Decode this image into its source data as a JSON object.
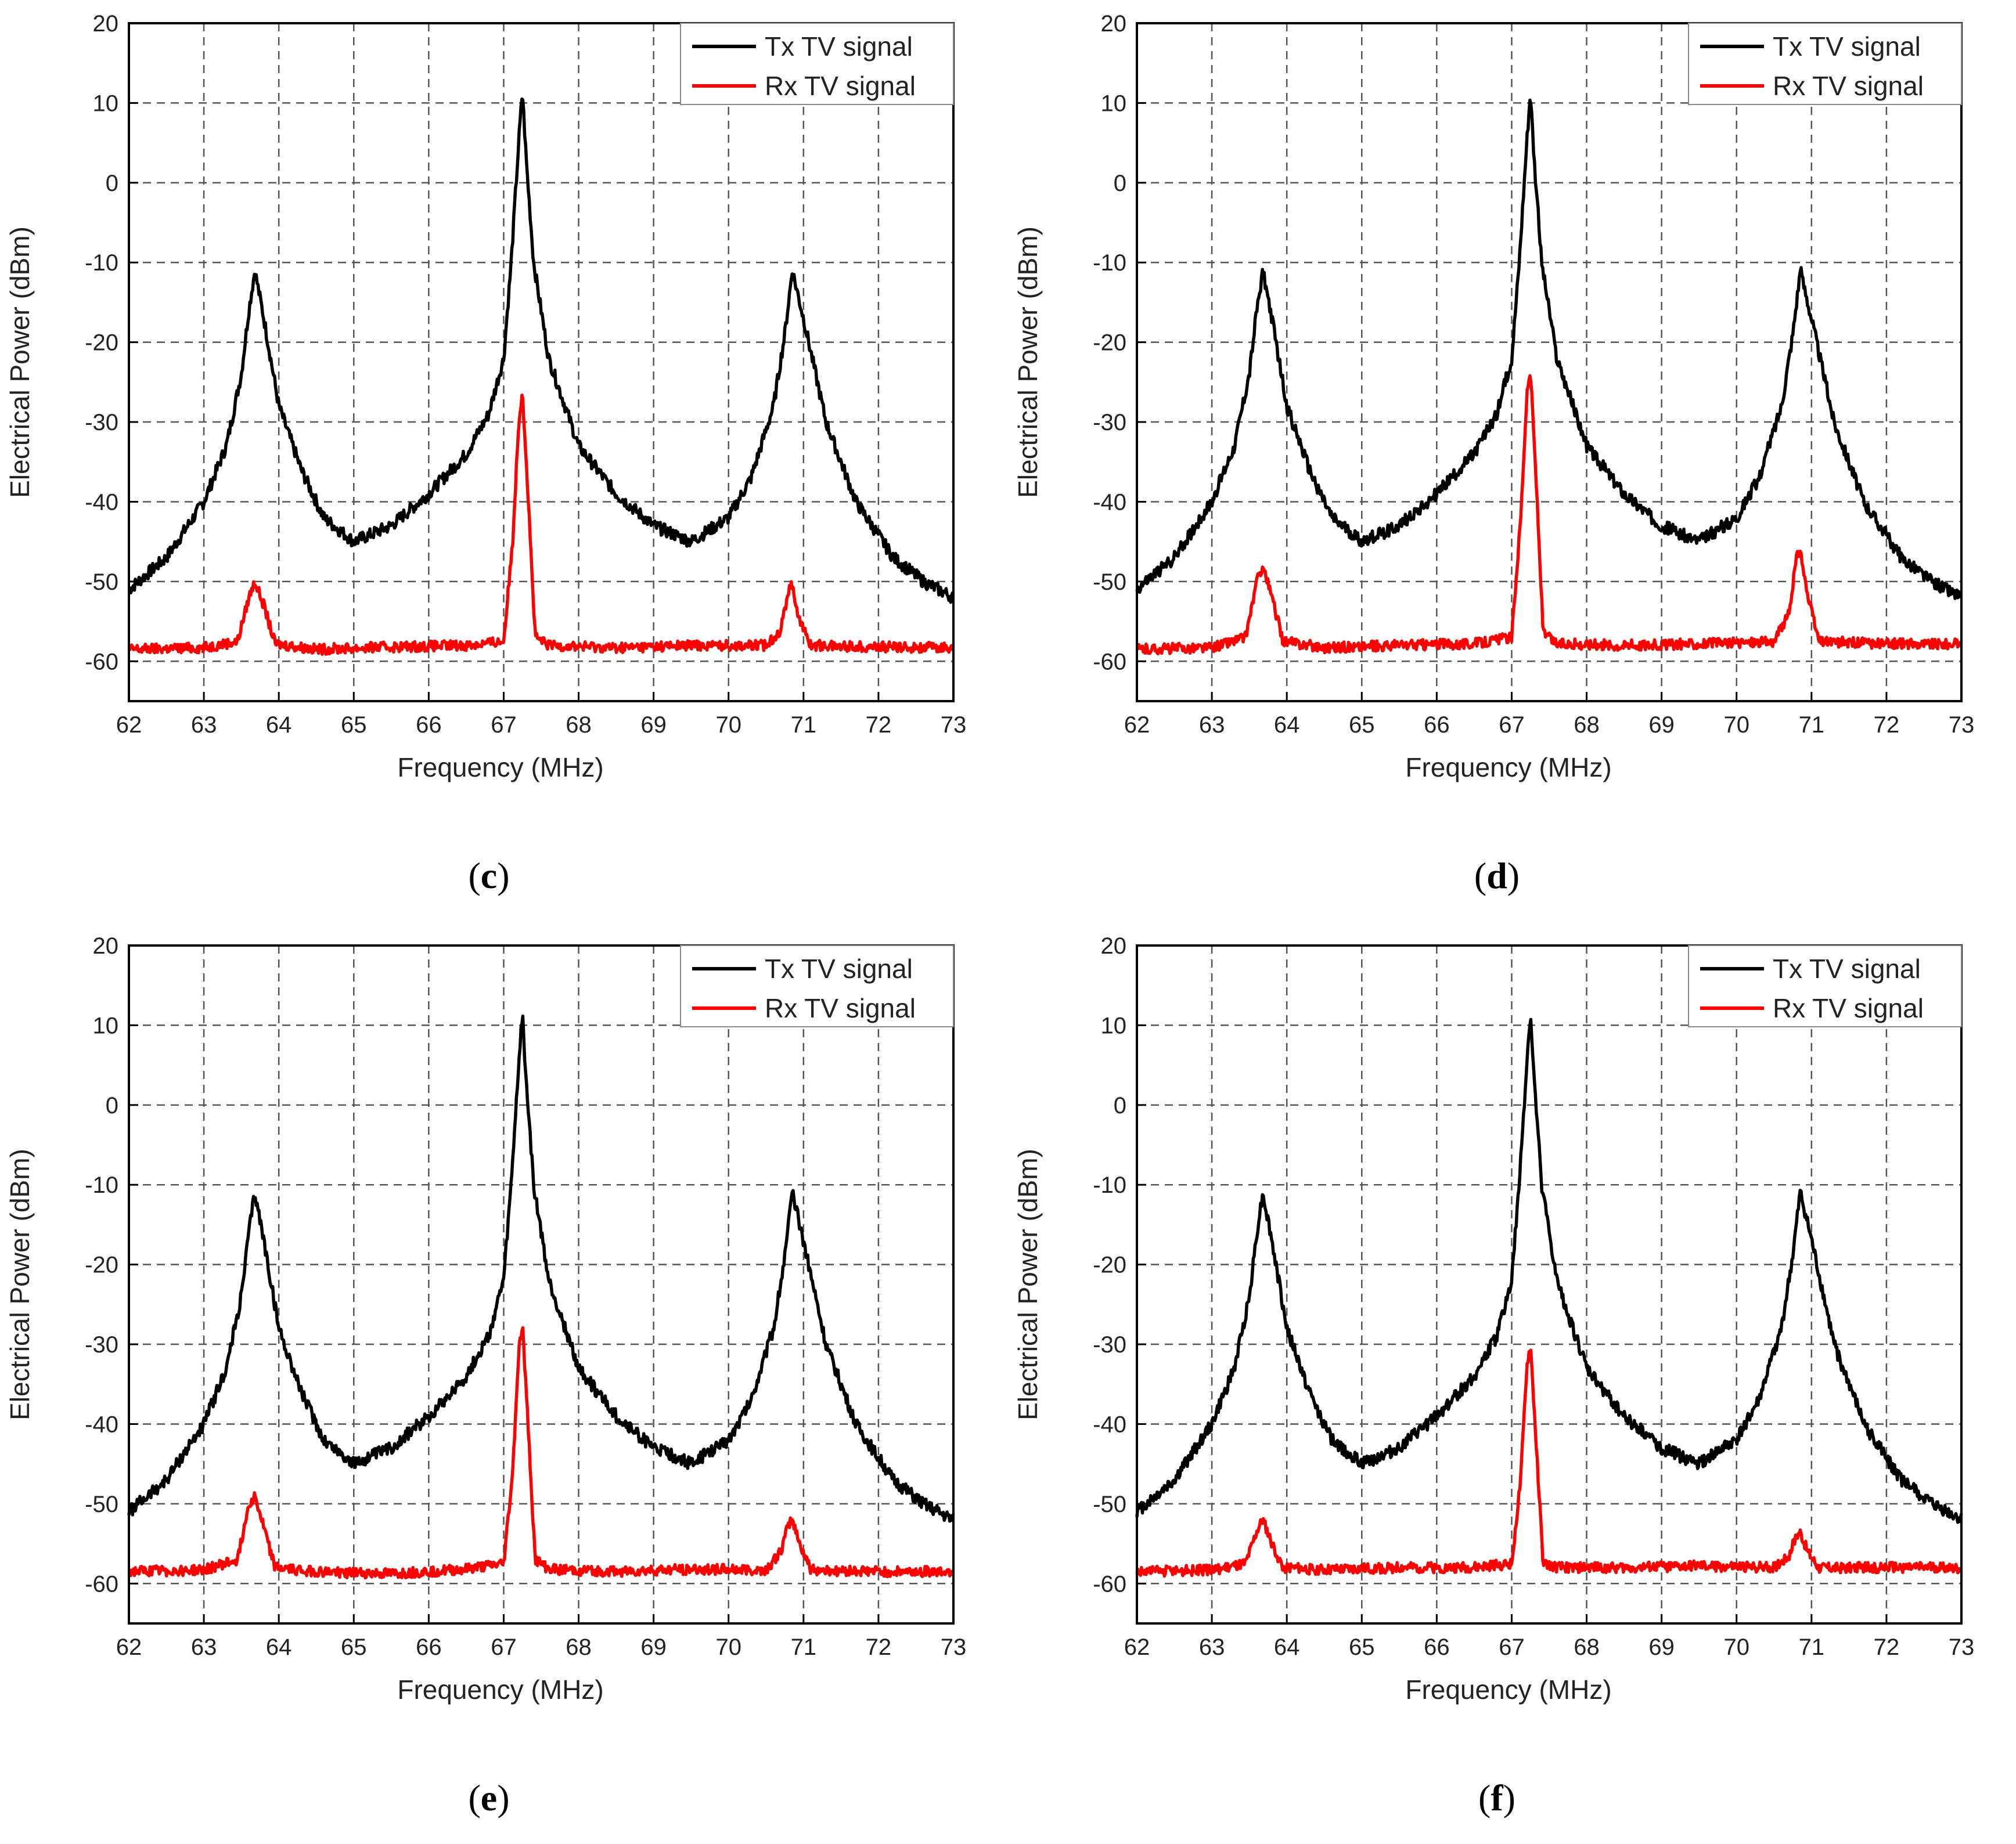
{
  "figure": {
    "xlabel": "Frequency (MHz)",
    "ylabel": "Electrical Power (dBm)"
  },
  "chart_data": [
    {
      "type": "line",
      "caption": "c",
      "xlabel": "Frequency (MHz)",
      "ylabel": "Electrical Power (dBm)",
      "xlim": [
        62,
        73
      ],
      "ylim": [
        -65,
        20
      ],
      "xticks": [
        62,
        63,
        64,
        65,
        66,
        67,
        68,
        69,
        70,
        71,
        72,
        73
      ],
      "yticks": [
        20,
        10,
        0,
        -10,
        -20,
        -30,
        -40,
        -50,
        -60
      ],
      "grid": true,
      "legend_position": "top-right",
      "series": [
        {
          "name": "Tx TV signal",
          "color": "#000000",
          "x": [
            62.0,
            62.5,
            63.0,
            63.3,
            63.5,
            63.6,
            63.68,
            63.8,
            64.0,
            64.3,
            64.6,
            65.0,
            65.5,
            66.0,
            66.5,
            66.8,
            67.0,
            67.1,
            67.2,
            67.25,
            67.3,
            67.4,
            67.6,
            68.0,
            68.5,
            69.0,
            69.5,
            70.0,
            70.3,
            70.6,
            70.75,
            70.85,
            71.0,
            71.3,
            71.7,
            72.2,
            72.6,
            73.0
          ],
          "y": [
            -51,
            -47,
            -40,
            -33,
            -24,
            -16,
            -11,
            -17,
            -28,
            -36,
            -42,
            -45,
            -43,
            -39,
            -34,
            -29,
            -22,
            -10,
            5,
            11.5,
            3,
            -10,
            -22,
            -33,
            -39,
            -43,
            -45,
            -42,
            -37,
            -28,
            -19,
            -11,
            -17,
            -30,
            -40,
            -47,
            -50,
            -52
          ]
        },
        {
          "name": "Rx TV signal",
          "color": "#ff0000",
          "x": [
            62.0,
            63.0,
            63.45,
            63.6,
            63.68,
            63.8,
            63.95,
            64.5,
            65.5,
            66.5,
            67.0,
            67.12,
            67.2,
            67.25,
            67.33,
            67.42,
            67.6,
            68.5,
            69.5,
            70.5,
            70.7,
            70.8,
            70.85,
            70.95,
            71.1,
            72.0,
            73.0
          ],
          "y": [
            -58.5,
            -58.3,
            -57.5,
            -52,
            -50,
            -53,
            -57.8,
            -58.5,
            -58.2,
            -58,
            -57.5,
            -45,
            -30,
            -26,
            -40,
            -57,
            -58,
            -58.3,
            -58,
            -58,
            -56,
            -51,
            -50.5,
            -55,
            -58,
            -58.2,
            -58.3
          ]
        }
      ]
    },
    {
      "type": "line",
      "caption": "d",
      "xlabel": "Frequency (MHz)",
      "ylabel": "Electrical Power (dBm)",
      "xlim": [
        62,
        73
      ],
      "ylim": [
        -65,
        20
      ],
      "xticks": [
        62,
        63,
        64,
        65,
        66,
        67,
        68,
        69,
        70,
        71,
        72,
        73
      ],
      "yticks": [
        20,
        10,
        0,
        -10,
        -20,
        -30,
        -40,
        -50,
        -60
      ],
      "grid": true,
      "legend_position": "top-right",
      "series": [
        {
          "name": "Tx TV signal",
          "color": "#000000",
          "x": [
            62.0,
            62.5,
            63.0,
            63.3,
            63.5,
            63.6,
            63.68,
            63.8,
            64.0,
            64.3,
            64.6,
            65.0,
            65.5,
            66.0,
            66.5,
            66.8,
            67.0,
            67.1,
            67.2,
            67.25,
            67.3,
            67.4,
            67.6,
            68.0,
            68.5,
            69.0,
            69.5,
            70.0,
            70.3,
            70.6,
            70.75,
            70.85,
            71.0,
            71.3,
            71.7,
            72.2,
            72.6,
            73.0
          ],
          "y": [
            -51,
            -47,
            -40,
            -33,
            -24,
            -16,
            -11,
            -17,
            -28,
            -36,
            -42,
            -45,
            -43,
            -39,
            -34,
            -29,
            -22,
            -10,
            5,
            11.5,
            3,
            -10,
            -22,
            -33,
            -39,
            -43,
            -45,
            -42,
            -37,
            -28,
            -19,
            -11,
            -17,
            -30,
            -40,
            -47,
            -50,
            -52
          ]
        },
        {
          "name": "Rx TV signal",
          "color": "#ff0000",
          "x": [
            62.0,
            63.0,
            63.45,
            63.6,
            63.68,
            63.8,
            63.95,
            64.5,
            65.5,
            66.5,
            67.0,
            67.12,
            67.2,
            67.25,
            67.33,
            67.42,
            67.6,
            68.5,
            69.5,
            70.5,
            70.7,
            70.8,
            70.85,
            70.95,
            71.1,
            72.0,
            73.0
          ],
          "y": [
            -58.5,
            -58.3,
            -57,
            -50,
            -48,
            -52,
            -57.5,
            -58.3,
            -58,
            -57.8,
            -57,
            -42,
            -27,
            -23.5,
            -38,
            -56.5,
            -57.8,
            -58,
            -57.8,
            -57.5,
            -54,
            -47,
            -46,
            -52,
            -57.5,
            -57.8,
            -57.8
          ]
        }
      ]
    },
    {
      "type": "line",
      "caption": "e",
      "xlabel": "Frequency (MHz)",
      "ylabel": "Electrical Power (dBm)",
      "xlim": [
        62,
        73
      ],
      "ylim": [
        -65,
        20
      ],
      "xticks": [
        62,
        63,
        64,
        65,
        66,
        67,
        68,
        69,
        70,
        71,
        72,
        73
      ],
      "yticks": [
        20,
        10,
        0,
        -10,
        -20,
        -30,
        -40,
        -50,
        -60
      ],
      "grid": true,
      "legend_position": "top-right",
      "series": [
        {
          "name": "Tx TV signal",
          "color": "#000000",
          "x": [
            62.0,
            62.5,
            63.0,
            63.3,
            63.5,
            63.6,
            63.68,
            63.8,
            64.0,
            64.3,
            64.6,
            65.0,
            65.5,
            66.0,
            66.5,
            66.8,
            67.0,
            67.1,
            67.2,
            67.25,
            67.3,
            67.4,
            67.6,
            68.0,
            68.5,
            69.0,
            69.5,
            70.0,
            70.3,
            70.6,
            70.75,
            70.85,
            71.0,
            71.3,
            71.7,
            72.2,
            72.6,
            73.0
          ],
          "y": [
            -51,
            -47,
            -40,
            -33,
            -24,
            -16,
            -11,
            -17,
            -28,
            -36,
            -42,
            -45,
            -43,
            -39,
            -34,
            -29,
            -22,
            -10,
            5,
            11.5,
            3,
            -10,
            -22,
            -33,
            -39,
            -43,
            -45,
            -42,
            -37,
            -28,
            -19,
            -11,
            -17,
            -30,
            -40,
            -47,
            -50,
            -52
          ]
        },
        {
          "name": "Rx TV signal",
          "color": "#ff0000",
          "x": [
            62.0,
            63.0,
            63.45,
            63.6,
            63.68,
            63.8,
            63.95,
            64.5,
            65.5,
            66.5,
            67.0,
            67.12,
            67.2,
            67.25,
            67.33,
            67.42,
            67.6,
            68.5,
            69.5,
            70.5,
            70.7,
            70.8,
            70.85,
            70.95,
            71.1,
            72.0,
            73.0
          ],
          "y": [
            -58.5,
            -58.3,
            -57,
            -50,
            -49,
            -53,
            -58,
            -58.5,
            -58.8,
            -58.2,
            -57.5,
            -46,
            -31,
            -27.5,
            -41,
            -57,
            -58.2,
            -58.5,
            -58.2,
            -58.3,
            -56,
            -52.5,
            -52,
            -55,
            -58.3,
            -58.5,
            -58.5
          ]
        }
      ]
    },
    {
      "type": "line",
      "caption": "f",
      "xlabel": "Frequency (MHz)",
      "ylabel": "Electrical Power (dBm)",
      "xlim": [
        62,
        73
      ],
      "ylim": [
        -65,
        20
      ],
      "xticks": [
        62,
        63,
        64,
        65,
        66,
        67,
        68,
        69,
        70,
        71,
        72,
        73
      ],
      "yticks": [
        20,
        10,
        0,
        -10,
        -20,
        -30,
        -40,
        -50,
        -60
      ],
      "grid": true,
      "legend_position": "top-right",
      "series": [
        {
          "name": "Tx TV signal",
          "color": "#000000",
          "x": [
            62.0,
            62.5,
            63.0,
            63.3,
            63.5,
            63.6,
            63.68,
            63.8,
            64.0,
            64.3,
            64.6,
            65.0,
            65.5,
            66.0,
            66.5,
            66.8,
            67.0,
            67.1,
            67.2,
            67.25,
            67.3,
            67.4,
            67.6,
            68.0,
            68.5,
            69.0,
            69.5,
            70.0,
            70.3,
            70.6,
            70.75,
            70.85,
            71.0,
            71.3,
            71.7,
            72.2,
            72.6,
            73.0
          ],
          "y": [
            -51,
            -47,
            -40,
            -33,
            -24,
            -16,
            -11,
            -17,
            -28,
            -36,
            -42,
            -45,
            -43,
            -39,
            -34,
            -29,
            -22,
            -10,
            5,
            11.5,
            3,
            -10,
            -22,
            -33,
            -39,
            -43,
            -45,
            -42,
            -37,
            -28,
            -19,
            -11,
            -17,
            -30,
            -40,
            -47,
            -50,
            -52
          ]
        },
        {
          "name": "Rx TV signal",
          "color": "#ff0000",
          "x": [
            62.0,
            63.0,
            63.45,
            63.6,
            63.68,
            63.8,
            63.95,
            64.5,
            65.5,
            66.5,
            67.0,
            67.12,
            67.2,
            67.25,
            67.33,
            67.42,
            67.6,
            68.5,
            69.5,
            70.5,
            70.7,
            70.8,
            70.85,
            70.95,
            71.1,
            72.0,
            73.0
          ],
          "y": [
            -58.5,
            -58.3,
            -57.5,
            -53.5,
            -52,
            -55,
            -58,
            -58.3,
            -58,
            -58,
            -57.5,
            -47,
            -33,
            -30,
            -43,
            -57.5,
            -58,
            -58,
            -57.8,
            -58,
            -56.5,
            -54,
            -53.5,
            -56,
            -58,
            -58,
            -58
          ]
        }
      ]
    }
  ]
}
